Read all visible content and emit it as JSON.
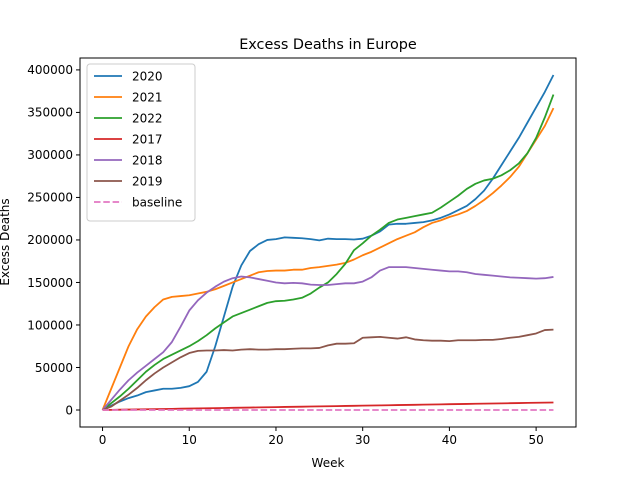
{
  "chart_data": {
    "type": "line",
    "title": "Excess Deaths in Europe",
    "xlabel": "Week",
    "ylabel": "Excess Deaths",
    "xlim": [
      -2.6,
      54.6
    ],
    "ylim": [
      -20000,
      414000
    ],
    "x_ticks": [
      0,
      10,
      20,
      30,
      40,
      50
    ],
    "x_tick_labels": [
      "0",
      "10",
      "20",
      "30",
      "40",
      "50"
    ],
    "y_ticks": [
      0,
      50000,
      100000,
      150000,
      200000,
      250000,
      300000,
      350000,
      400000
    ],
    "y_tick_labels": [
      "0",
      "50000",
      "100000",
      "150000",
      "200000",
      "250000",
      "300000",
      "350000",
      "400000"
    ],
    "grid": false,
    "legend_position": "upper-left",
    "x": [
      0,
      1,
      2,
      3,
      4,
      5,
      6,
      7,
      8,
      9,
      10,
      11,
      12,
      13,
      14,
      15,
      16,
      17,
      18,
      19,
      20,
      21,
      22,
      23,
      24,
      25,
      26,
      27,
      28,
      29,
      30,
      31,
      32,
      33,
      34,
      35,
      36,
      37,
      38,
      39,
      40,
      41,
      42,
      43,
      44,
      45,
      46,
      47,
      48,
      49,
      50,
      51,
      52
    ],
    "series": [
      {
        "name": "2020",
        "color": "#1f77b4",
        "style": "solid",
        "values": [
          0,
          5000,
          10000,
          14000,
          17000,
          21000,
          23000,
          25000,
          25000,
          26000,
          28000,
          33000,
          45000,
          75000,
          110000,
          145000,
          170000,
          187000,
          195000,
          200000,
          201000,
          203000,
          202500,
          202000,
          201000,
          199500,
          201500,
          201000,
          201000,
          200500,
          201500,
          205000,
          210000,
          218000,
          219000,
          219000,
          220000,
          221000,
          223000,
          226000,
          230000,
          235000,
          240000,
          248000,
          258000,
          272000,
          288000,
          304000,
          320000,
          338000,
          356000,
          374000,
          394000
        ]
      },
      {
        "name": "2021",
        "color": "#ff7f0e",
        "style": "solid",
        "values": [
          0,
          25000,
          50000,
          75000,
          95000,
          110000,
          121000,
          130000,
          133000,
          134000,
          135000,
          137000,
          139000,
          142000,
          146000,
          150000,
          154000,
          158000,
          162000,
          163500,
          164000,
          164000,
          165000,
          165000,
          167000,
          168000,
          169500,
          171000,
          173000,
          177000,
          182000,
          186000,
          191000,
          196000,
          201000,
          205000,
          209000,
          215000,
          220000,
          223000,
          227000,
          230000,
          234000,
          240000,
          247000,
          255000,
          264000,
          274000,
          286000,
          302000,
          318000,
          334000,
          355000
        ]
      },
      {
        "name": "2022",
        "color": "#2ca02c",
        "style": "solid",
        "values": [
          0,
          8000,
          16000,
          25000,
          35000,
          45000,
          53000,
          60000,
          65000,
          70000,
          75000,
          81000,
          88000,
          96000,
          103000,
          110000,
          114000,
          118000,
          122000,
          126000,
          128000,
          128500,
          130000,
          132000,
          137000,
          144000,
          150000,
          160000,
          172000,
          188000,
          196000,
          205000,
          212000,
          220000,
          224000,
          226000,
          228000,
          230000,
          232000,
          238000,
          245000,
          252000,
          260000,
          266000,
          270000,
          272000,
          276000,
          282000,
          290000,
          302000,
          320000,
          344000,
          371000
        ]
      },
      {
        "name": "2017",
        "color": "#d62728",
        "style": "solid",
        "values": [
          0,
          170,
          340,
          510,
          680,
          850,
          1020,
          1190,
          1360,
          1530,
          1700,
          1870,
          2040,
          2210,
          2380,
          2550,
          2720,
          2890,
          3060,
          3230,
          3400,
          3570,
          3740,
          3910,
          4080,
          4250,
          4420,
          4590,
          4760,
          4930,
          5100,
          5270,
          5440,
          5610,
          5780,
          5950,
          6120,
          6290,
          6460,
          6630,
          6800,
          6970,
          7140,
          7310,
          7480,
          7650,
          7820,
          7990,
          8160,
          8330,
          8500,
          8670,
          8840
        ]
      },
      {
        "name": "2018",
        "color": "#9467bd",
        "style": "solid",
        "values": [
          0,
          12000,
          24000,
          35000,
          44000,
          52000,
          60000,
          68000,
          80000,
          98000,
          117000,
          129000,
          138000,
          145000,
          151000,
          155000,
          157000,
          156000,
          154000,
          152000,
          150000,
          149000,
          149500,
          149000,
          147500,
          147000,
          147000,
          148000,
          149000,
          149000,
          151000,
          156000,
          164000,
          168000,
          168000,
          168000,
          167000,
          166000,
          165000,
          164000,
          163000,
          163000,
          162000,
          160000,
          159000,
          158000,
          157000,
          156000,
          155500,
          155000,
          154500,
          155000,
          156500
        ]
      },
      {
        "name": "2019",
        "color": "#8c564b",
        "style": "solid",
        "values": [
          0,
          4000,
          11000,
          18000,
          26000,
          35000,
          43000,
          50000,
          56000,
          62000,
          67000,
          69500,
          70000,
          70000,
          70500,
          70000,
          71000,
          71500,
          71000,
          71000,
          71500,
          71500,
          72000,
          72500,
          72500,
          73000,
          76000,
          78000,
          78000,
          78500,
          85000,
          85500,
          86000,
          85000,
          84000,
          85500,
          83000,
          82000,
          81500,
          81500,
          81000,
          82000,
          82000,
          82000,
          82500,
          82500,
          83500,
          85000,
          86000,
          88000,
          90000,
          94000,
          94500
        ]
      },
      {
        "name": "baseline",
        "color": "#e377c2",
        "style": "dashed",
        "values": [
          0,
          0,
          0,
          0,
          0,
          0,
          0,
          0,
          0,
          0,
          0,
          0,
          0,
          0,
          0,
          0,
          0,
          0,
          0,
          0,
          0,
          0,
          0,
          0,
          0,
          0,
          0,
          0,
          0,
          0,
          0,
          0,
          0,
          0,
          0,
          0,
          0,
          0,
          0,
          0,
          0,
          0,
          0,
          0,
          0,
          0,
          0,
          0,
          0,
          0,
          0,
          0,
          0
        ]
      }
    ]
  }
}
